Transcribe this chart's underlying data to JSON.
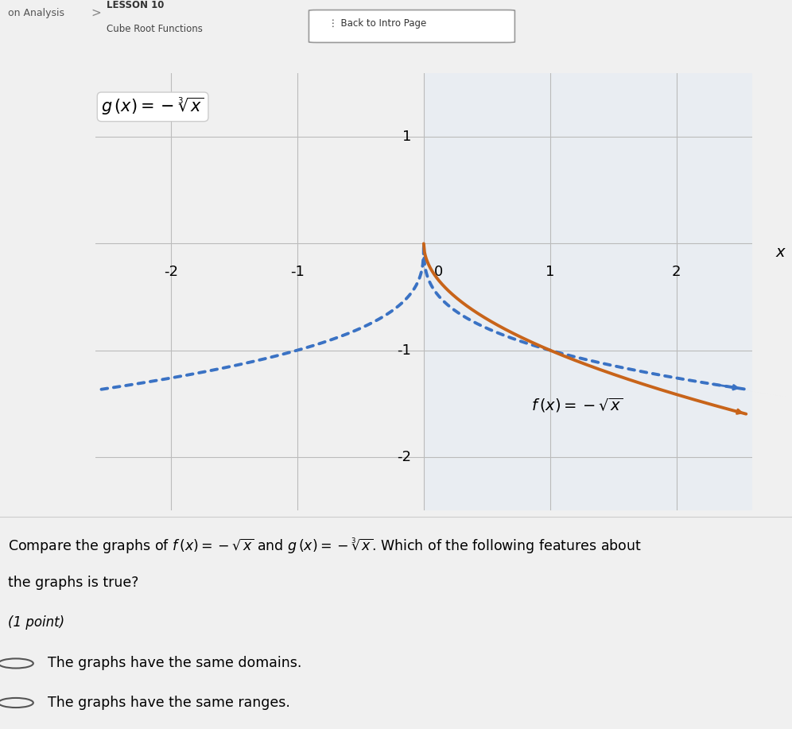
{
  "title_lesson": "LESSON 10",
  "title_topic": "Cube Root Functions",
  "title_back": "Back to Intro Page",
  "breadcrumb": "on Analysis",
  "xlim": [
    -2.6,
    2.6
  ],
  "ylim": [
    -2.5,
    1.6
  ],
  "xticks": [
    -2,
    -1,
    0,
    1,
    2
  ],
  "yticks": [
    -2,
    -1,
    0,
    1
  ],
  "xlabel": "x",
  "f_color": "#c8641a",
  "g_color": "#3a72c4",
  "g_label": "g (x) = -\\sqrt[3]{x}",
  "f_label": "f (x) = -\\sqrt{x}",
  "question_text": "Compare the graphs of $f\\,(x) = -\\sqrt{x}$ and $g\\,(x) = -\\sqrt[3]{x}$. Which of the following features about\nthe graphs is true?",
  "point_text": "(1 point)",
  "answer1": "The graphs have the same domains.",
  "answer2": "The graphs have the same ranges.",
  "header_bg": "#f5f5f5",
  "teal_stripe": "#2ab8c8",
  "page_bg": "#f0f0f0",
  "graph_bg": "#ffffff",
  "graph_right_bg": "#e8eef8"
}
